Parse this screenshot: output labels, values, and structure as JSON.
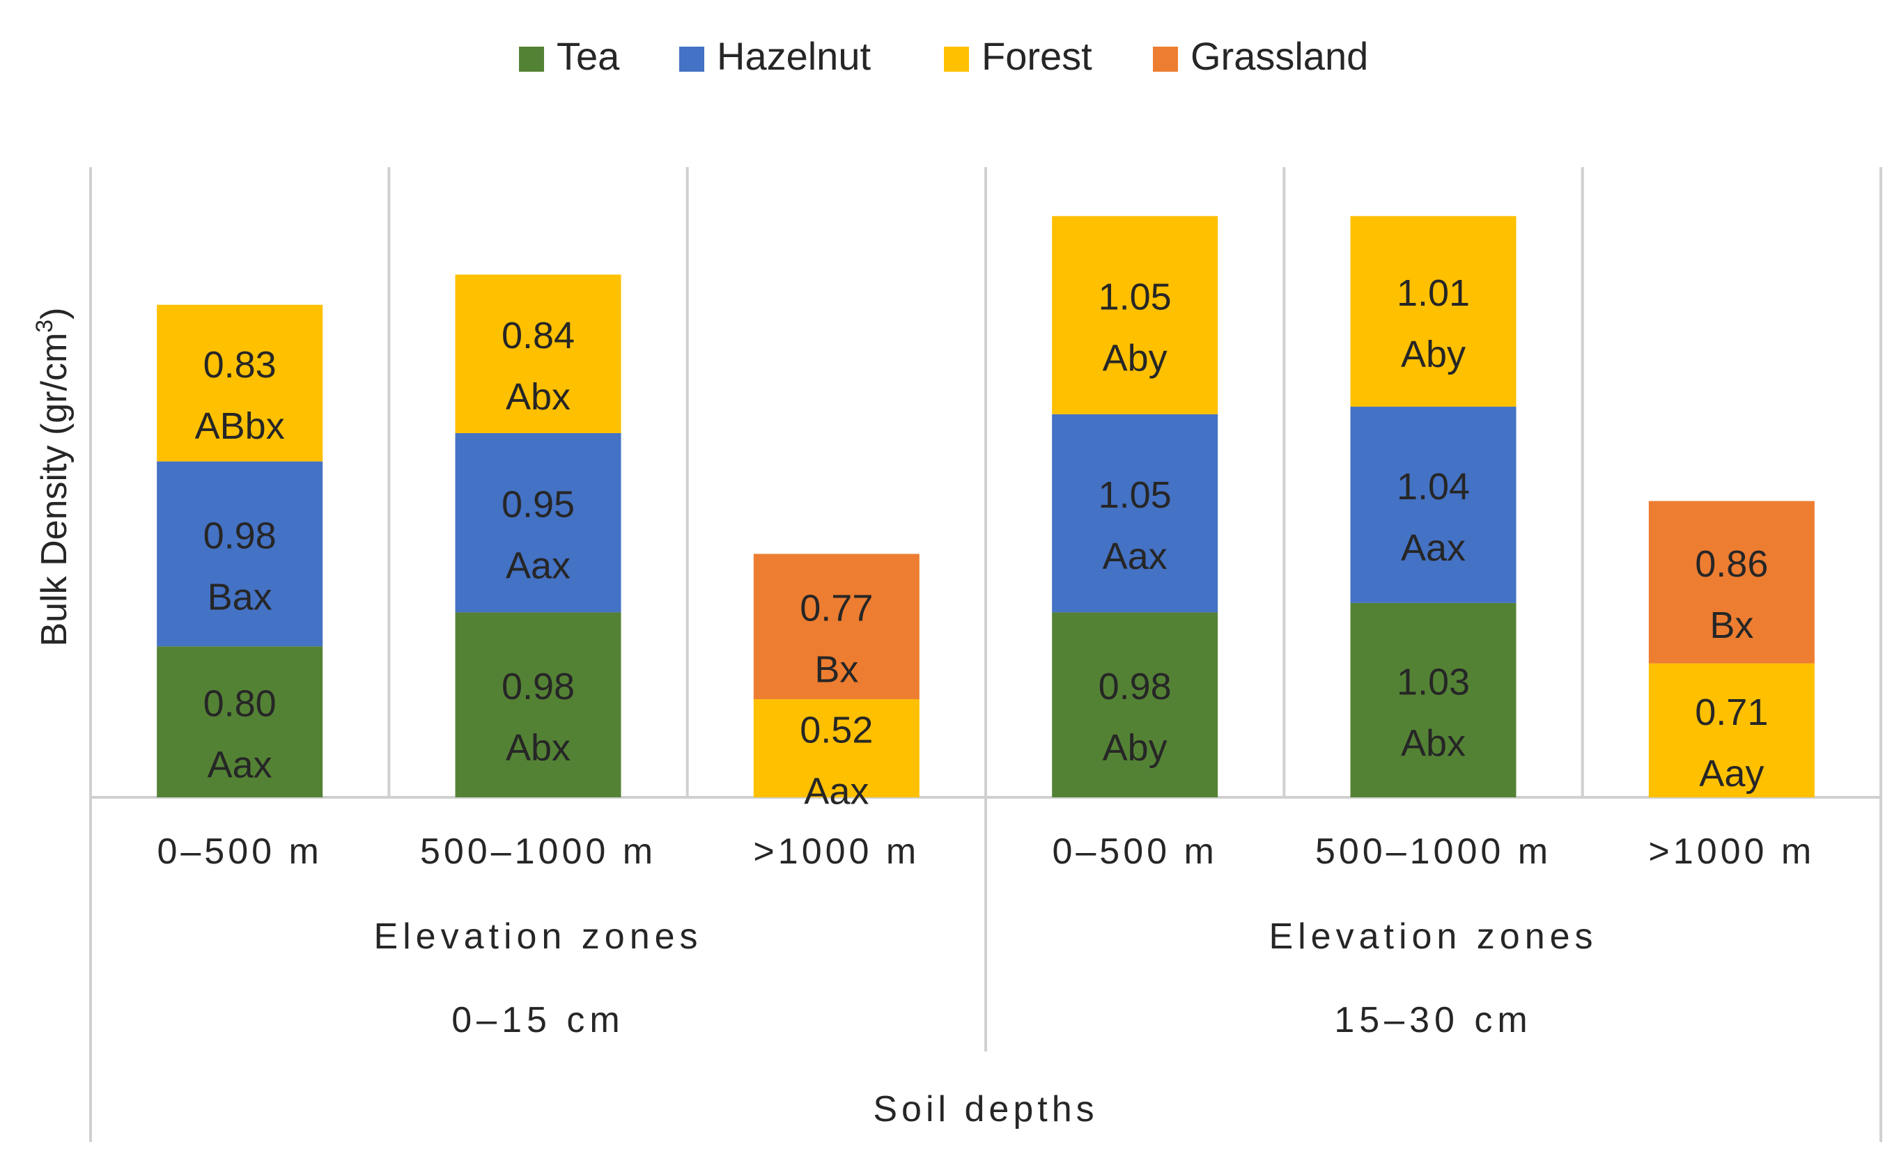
{
  "chart_data": {
    "type": "bar",
    "stacked": true,
    "legend": [
      {
        "name": "Tea",
        "color": "#548235"
      },
      {
        "name": "Hazelnut",
        "color": "#4472C4"
      },
      {
        "name": "Forest",
        "color": "#FFC000"
      },
      {
        "name": "Grassland",
        "color": "#ED7D31"
      }
    ],
    "legend_position": "top",
    "ylabel": "Bulk Density (gr/cm",
    "ylabel_superscript": "3",
    "ylabel_close": ")",
    "xlabel": "Soil depths",
    "grid": false,
    "groups": [
      {
        "label": "0–15 cm",
        "sublabel": "Elevation zones",
        "categories": [
          {
            "label": "0–500 m",
            "segments": [
              {
                "series": "Tea",
                "value": 0.8,
                "letters": "Aax"
              },
              {
                "series": "Hazelnut",
                "value": 0.98,
                "letters": "Bax"
              },
              {
                "series": "Forest",
                "value": 0.83,
                "letters": "ABbx"
              }
            ]
          },
          {
            "label": "500–1000 m",
            "segments": [
              {
                "series": "Tea",
                "value": 0.98,
                "letters": "Abx"
              },
              {
                "series": "Hazelnut",
                "value": 0.95,
                "letters": "Aax"
              },
              {
                "series": "Forest",
                "value": 0.84,
                "letters": "Abx"
              }
            ]
          },
          {
            "label": ">1000 m",
            "segments": [
              {
                "series": "Forest",
                "value": 0.52,
                "letters": "Aax"
              },
              {
                "series": "Grassland",
                "value": 0.77,
                "letters": "Bx"
              }
            ]
          }
        ]
      },
      {
        "label": "15–30 cm",
        "sublabel": "Elevation zones",
        "categories": [
          {
            "label": "0–500 m",
            "segments": [
              {
                "series": "Tea",
                "value": 0.98,
                "letters": "Aby"
              },
              {
                "series": "Hazelnut",
                "value": 1.05,
                "letters": "Aax"
              },
              {
                "series": "Forest",
                "value": 1.05,
                "letters": "Aby"
              }
            ]
          },
          {
            "label": "500–1000 m",
            "segments": [
              {
                "series": "Tea",
                "value": 1.03,
                "letters": "Abx"
              },
              {
                "series": "Hazelnut",
                "value": 1.04,
                "letters": "Aax"
              },
              {
                "series": "Forest",
                "value": 1.01,
                "letters": "Aby"
              }
            ]
          },
          {
            "label": ">1000 m",
            "segments": [
              {
                "series": "Forest",
                "value": 0.71,
                "letters": "Aay"
              },
              {
                "series": "Grassland",
                "value": 0.86,
                "letters": "Bx"
              }
            ]
          }
        ]
      }
    ]
  }
}
